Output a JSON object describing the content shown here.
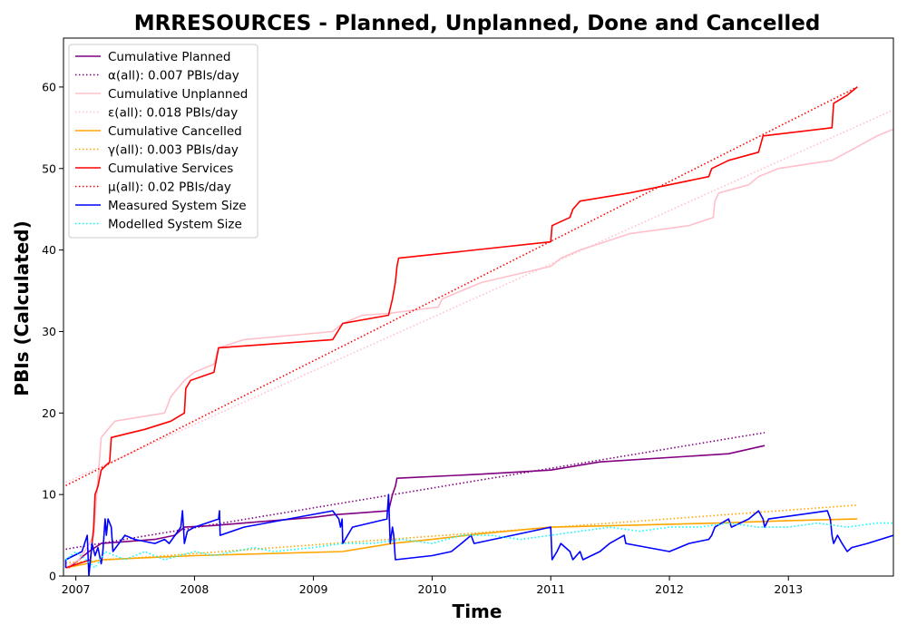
{
  "chart_data": {
    "type": "line",
    "title": "MRRESOURCES - Planned, Unplanned, Done  and Cancelled",
    "xlabel": "Time",
    "ylabel": "PBIs (Calculated)",
    "xlim": [
      "2006-11-24",
      "2013-11-20"
    ],
    "ylim": [
      0,
      66
    ],
    "x_ticks": [
      {
        "value": "2007-01-01",
        "label": "2007"
      },
      {
        "value": "2008-01-01",
        "label": "2008"
      },
      {
        "value": "2009-01-01",
        "label": "2009"
      },
      {
        "value": "2010-01-01",
        "label": "2010"
      },
      {
        "value": "2011-01-01",
        "label": "2011"
      },
      {
        "value": "2012-01-01",
        "label": "2012"
      },
      {
        "value": "2013-01-01",
        "label": "2013"
      }
    ],
    "y_ticks": [
      0,
      10,
      20,
      30,
      40,
      50,
      60
    ],
    "grid": false,
    "legend_position": "top-left",
    "series": [
      {
        "name": "Cumulative Planned",
        "color": "#800080",
        "style": "solid",
        "points": [
          [
            "2006-12-10",
            1
          ],
          [
            "2007-02-10",
            3
          ],
          [
            "2007-03-20",
            4
          ],
          [
            "2007-09-01",
            4.5
          ],
          [
            "2007-11-01",
            5
          ],
          [
            "2007-12-01",
            6
          ],
          [
            "2008-03-01",
            6.2
          ],
          [
            "2008-06-01",
            6.5
          ],
          [
            "2009-01-01",
            7.2
          ],
          [
            "2009-03-01",
            7.5
          ],
          [
            "2009-08-20",
            8
          ],
          [
            "2009-09-01",
            10
          ],
          [
            "2009-09-10",
            11
          ],
          [
            "2009-09-15",
            12
          ],
          [
            "2010-06-01",
            12.5
          ],
          [
            "2011-01-01",
            13
          ],
          [
            "2011-06-01",
            14
          ],
          [
            "2012-07-01",
            15
          ],
          [
            "2012-10-20",
            16
          ]
        ]
      },
      {
        "name": "α(all): 0.007 PBIs/day",
        "color": "#800080",
        "style": "dotted",
        "points": [
          [
            "2006-12-01",
            3.3
          ],
          [
            "2012-10-20",
            17.6
          ]
        ]
      },
      {
        "name": "Cumulative Unplanned",
        "color": "#ffc0cb",
        "style": "solid",
        "points": [
          [
            "2006-12-01",
            1
          ],
          [
            "2007-01-10",
            2
          ],
          [
            "2007-02-05",
            3.5
          ],
          [
            "2007-02-25",
            5
          ],
          [
            "2007-03-10",
            12
          ],
          [
            "2007-03-20",
            17
          ],
          [
            "2007-04-10",
            18
          ],
          [
            "2007-05-01",
            19
          ],
          [
            "2007-10-01",
            20
          ],
          [
            "2007-10-20",
            22
          ],
          [
            "2007-12-01",
            24
          ],
          [
            "2008-01-01",
            25
          ],
          [
            "2008-03-01",
            26
          ],
          [
            "2008-03-15",
            28
          ],
          [
            "2008-06-01",
            29
          ],
          [
            "2009-03-01",
            30
          ],
          [
            "2009-04-01",
            31
          ],
          [
            "2009-06-01",
            32
          ],
          [
            "2009-08-15",
            32.2
          ],
          [
            "2010-01-20",
            33
          ],
          [
            "2010-02-01",
            34
          ],
          [
            "2010-06-01",
            36
          ],
          [
            "2011-01-01",
            38
          ],
          [
            "2011-02-01",
            39
          ],
          [
            "2011-04-01",
            40
          ],
          [
            "2011-09-01",
            42
          ],
          [
            "2012-03-01",
            43
          ],
          [
            "2012-05-15",
            44
          ],
          [
            "2012-05-20",
            46
          ],
          [
            "2012-06-01",
            47
          ],
          [
            "2012-09-01",
            48
          ],
          [
            "2012-10-01",
            49
          ],
          [
            "2012-12-01",
            50
          ],
          [
            "2013-05-15",
            51
          ],
          [
            "2013-07-01",
            52
          ],
          [
            "2013-10-01",
            54
          ],
          [
            "2013-12-01",
            55
          ]
        ]
      },
      {
        "name": "ε(all): 0.018 PBIs/day",
        "color": "#ffc0cb",
        "style": "dotted",
        "points": [
          [
            "2006-12-01",
            11.5
          ],
          [
            "2013-11-20",
            57.2
          ]
        ]
      },
      {
        "name": "Cumulative Cancelled",
        "color": "#ffa500",
        "style": "solid",
        "points": [
          [
            "2006-12-01",
            1
          ],
          [
            "2007-02-01",
            1.5
          ],
          [
            "2007-03-20",
            2
          ],
          [
            "2008-01-01",
            2.5
          ],
          [
            "2009-04-01",
            3
          ],
          [
            "2009-09-01",
            4
          ],
          [
            "2010-01-01",
            4.5
          ],
          [
            "2010-06-01",
            5.2
          ],
          [
            "2011-01-01",
            6
          ],
          [
            "2012-06-01",
            6.5
          ],
          [
            "2013-01-01",
            6.8
          ],
          [
            "2013-08-01",
            7
          ]
        ]
      },
      {
        "name": "γ(all): 0.003 PBIs/day",
        "color": "#ffa500",
        "style": "dotted",
        "points": [
          [
            "2006-12-01",
            1.6
          ],
          [
            "2013-08-01",
            8.7
          ]
        ]
      },
      {
        "name": "Cumulative Services",
        "color": "#ff0000",
        "style": "solid",
        "points": [
          [
            "2006-12-01",
            1
          ],
          [
            "2007-02-15",
            2
          ],
          [
            "2007-02-25",
            6
          ],
          [
            "2007-03-01",
            10
          ],
          [
            "2007-03-10",
            11
          ],
          [
            "2007-03-20",
            13
          ],
          [
            "2007-04-15",
            14
          ],
          [
            "2007-04-20",
            17
          ],
          [
            "2007-08-01",
            18
          ],
          [
            "2007-10-20",
            19
          ],
          [
            "2007-12-01",
            20
          ],
          [
            "2007-12-05",
            23
          ],
          [
            "2007-12-20",
            24
          ],
          [
            "2008-03-01",
            25
          ],
          [
            "2008-03-15",
            28
          ],
          [
            "2009-03-01",
            29
          ],
          [
            "2009-04-01",
            31
          ],
          [
            "2009-08-20",
            32
          ],
          [
            "2009-09-01",
            34
          ],
          [
            "2009-09-10",
            36
          ],
          [
            "2009-09-15",
            38
          ],
          [
            "2009-09-20",
            39
          ],
          [
            "2011-01-01",
            41
          ],
          [
            "2011-01-05",
            43
          ],
          [
            "2011-03-01",
            44
          ],
          [
            "2011-03-10",
            45
          ],
          [
            "2011-04-01",
            46
          ],
          [
            "2011-09-01",
            47
          ],
          [
            "2012-05-01",
            49
          ],
          [
            "2012-05-10",
            50
          ],
          [
            "2012-07-01",
            51
          ],
          [
            "2012-10-01",
            52
          ],
          [
            "2012-10-15",
            54
          ],
          [
            "2013-05-15",
            55
          ],
          [
            "2013-05-20",
            58
          ],
          [
            "2013-07-01",
            59
          ],
          [
            "2013-08-01",
            60
          ]
        ]
      },
      {
        "name": "μ(all): 0.02 PBIs/day",
        "color": "#ff0000",
        "style": "dotted",
        "points": [
          [
            "2006-12-01",
            11.1
          ],
          [
            "2013-08-01",
            60.0
          ]
        ]
      },
      {
        "name": "Measured System Size",
        "color": "#0000ff",
        "style": "solid",
        "points": [
          [
            "2006-12-01",
            1
          ],
          [
            "2006-12-01",
            2
          ],
          [
            "2007-01-20",
            3
          ],
          [
            "2007-02-05",
            5
          ],
          [
            "2007-02-10",
            0
          ],
          [
            "2007-02-15",
            2
          ],
          [
            "2007-02-20",
            4
          ],
          [
            "2007-03-01",
            2.5
          ],
          [
            "2007-03-10",
            3.5
          ],
          [
            "2007-03-20",
            1.5
          ],
          [
            "2007-03-25",
            3
          ],
          [
            "2007-04-01",
            7
          ],
          [
            "2007-04-05",
            5
          ],
          [
            "2007-04-10",
            7
          ],
          [
            "2007-04-20",
            6
          ],
          [
            "2007-04-25",
            3
          ],
          [
            "2007-06-01",
            5
          ],
          [
            "2007-07-01",
            4.5
          ],
          [
            "2007-09-01",
            4
          ],
          [
            "2007-10-01",
            4.5
          ],
          [
            "2007-10-15",
            4
          ],
          [
            "2007-11-20",
            6
          ],
          [
            "2007-11-25",
            8
          ],
          [
            "2007-12-01",
            4
          ],
          [
            "2007-12-10",
            5.5
          ],
          [
            "2008-01-01",
            6
          ],
          [
            "2008-03-15",
            7
          ],
          [
            "2008-03-18",
            8
          ],
          [
            "2008-03-20",
            5
          ],
          [
            "2008-06-01",
            6
          ],
          [
            "2009-03-01",
            8
          ],
          [
            "2009-03-20",
            7
          ],
          [
            "2009-03-25",
            6
          ],
          [
            "2009-03-30",
            7
          ],
          [
            "2009-04-01",
            4
          ],
          [
            "2009-05-01",
            6
          ],
          [
            "2009-08-15",
            7
          ],
          [
            "2009-08-20",
            10
          ],
          [
            "2009-08-25",
            4
          ],
          [
            "2009-09-01",
            6
          ],
          [
            "2009-09-05",
            5
          ],
          [
            "2009-09-10",
            2
          ],
          [
            "2010-01-01",
            2.5
          ],
          [
            "2010-03-01",
            3
          ],
          [
            "2010-04-01",
            4
          ],
          [
            "2010-05-01",
            5
          ],
          [
            "2010-05-10",
            4
          ],
          [
            "2011-01-01",
            6
          ],
          [
            "2011-01-05",
            2
          ],
          [
            "2011-01-20",
            3
          ],
          [
            "2011-02-01",
            4
          ],
          [
            "2011-03-01",
            3
          ],
          [
            "2011-03-10",
            2
          ],
          [
            "2011-04-01",
            3
          ],
          [
            "2011-04-10",
            2
          ],
          [
            "2011-06-01",
            3
          ],
          [
            "2011-07-01",
            4
          ],
          [
            "2011-08-15",
            5
          ],
          [
            "2011-08-20",
            4
          ],
          [
            "2012-01-01",
            3
          ],
          [
            "2012-03-01",
            4
          ],
          [
            "2012-05-01",
            4.5
          ],
          [
            "2012-05-10",
            5
          ],
          [
            "2012-05-20",
            6
          ],
          [
            "2012-07-01",
            7
          ],
          [
            "2012-07-10",
            6
          ],
          [
            "2012-09-01",
            7
          ],
          [
            "2012-10-01",
            8
          ],
          [
            "2012-10-15",
            7
          ],
          [
            "2012-10-20",
            6
          ],
          [
            "2012-11-01",
            7
          ],
          [
            "2013-05-01",
            8
          ],
          [
            "2013-05-10",
            7
          ],
          [
            "2013-05-15",
            5
          ],
          [
            "2013-05-20",
            4
          ],
          [
            "2013-06-01",
            5
          ],
          [
            "2013-06-15",
            4
          ],
          [
            "2013-07-01",
            3
          ],
          [
            "2013-07-15",
            3.5
          ],
          [
            "2013-09-01",
            4
          ],
          [
            "2013-11-20",
            5
          ]
        ]
      },
      {
        "name": "Modelled System Size",
        "color": "#00ffff",
        "style": "dotted",
        "points": [
          [
            "2006-12-01",
            2
          ],
          [
            "2007-01-01",
            3
          ],
          [
            "2007-02-01",
            2
          ],
          [
            "2007-03-01",
            1
          ],
          [
            "2007-04-01",
            3
          ],
          [
            "2007-06-01",
            2
          ],
          [
            "2007-08-01",
            3
          ],
          [
            "2007-10-01",
            2
          ],
          [
            "2008-01-01",
            3
          ],
          [
            "2008-03-01",
            2.5
          ],
          [
            "2008-05-01",
            3
          ],
          [
            "2008-07-01",
            3.5
          ],
          [
            "2008-09-01",
            3
          ],
          [
            "2009-01-01",
            3.5
          ],
          [
            "2009-04-01",
            4
          ],
          [
            "2009-07-01",
            4
          ],
          [
            "2009-10-01",
            4.5
          ],
          [
            "2010-01-01",
            4
          ],
          [
            "2010-04-01",
            5
          ],
          [
            "2010-07-01",
            5
          ],
          [
            "2010-10-01",
            4.5
          ],
          [
            "2011-01-01",
            5
          ],
          [
            "2011-04-01",
            5.5
          ],
          [
            "2011-07-01",
            6
          ],
          [
            "2011-10-01",
            5.5
          ],
          [
            "2012-01-01",
            6
          ],
          [
            "2012-04-01",
            6
          ],
          [
            "2012-07-01",
            6.5
          ],
          [
            "2012-10-01",
            6
          ],
          [
            "2013-01-01",
            6
          ],
          [
            "2013-04-01",
            6.5
          ],
          [
            "2013-07-01",
            6
          ],
          [
            "2013-10-01",
            6.5
          ],
          [
            "2013-11-20",
            6.5
          ]
        ]
      }
    ]
  }
}
